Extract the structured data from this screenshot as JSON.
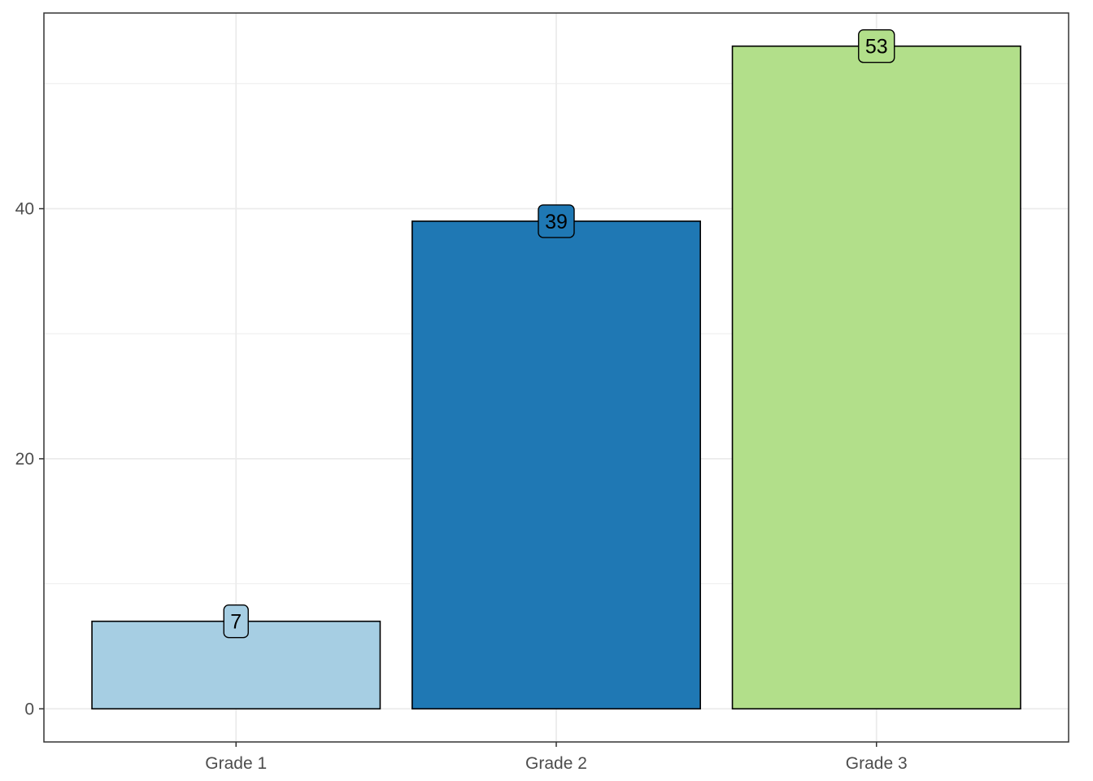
{
  "chart_data": {
    "type": "bar",
    "categories": [
      "Grade 1",
      "Grade 2",
      "Grade 3"
    ],
    "values": [
      7,
      39,
      53
    ],
    "data_labels": [
      "7",
      "39",
      "53"
    ],
    "colors": [
      "#a6cee3",
      "#1f78b4",
      "#b2df8a"
    ],
    "title": "",
    "xlabel": "",
    "ylabel": "",
    "ylim": [
      -2.65,
      55.65
    ],
    "yticks": [
      0,
      20,
      40
    ],
    "ytick_labels": [
      "0",
      "20",
      "40"
    ],
    "grid": true,
    "legend": "none"
  }
}
